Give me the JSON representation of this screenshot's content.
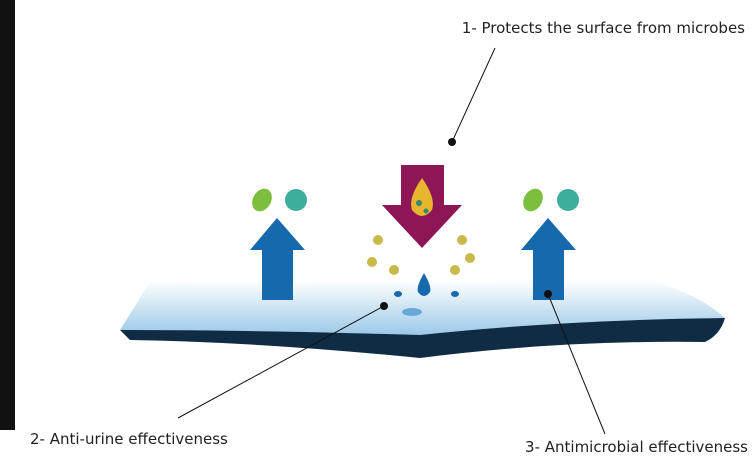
{
  "labels": [
    "1- Protects the surface from microbes",
    "2- Anti-urine effectiveness",
    "3- Antimicrobial effectiveness"
  ]
}
